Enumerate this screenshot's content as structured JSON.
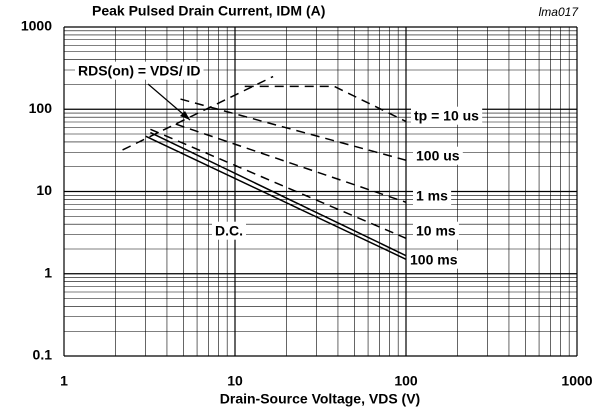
{
  "chart_data": {
    "type": "line",
    "title": "Peak Pulsed Drain Current, IDM (A)",
    "figure_id": "lma017",
    "x_label": "Drain-Source Voltage, VDS (V)",
    "log_x": true,
    "log_y": true,
    "grid": true,
    "xlim": [
      1,
      1000
    ],
    "xticks": [
      1,
      10,
      100,
      1000
    ],
    "ylim": [
      0.1,
      1000
    ],
    "yticks": [
      0.1,
      1,
      10,
      100,
      1000
    ],
    "color": "#000000",
    "series": [
      {
        "name": "RDS(on) = VDS/ ID",
        "dashed": true,
        "x": [
          2.2,
          16.7
        ],
        "values": [
          32,
          250
        ]
      },
      {
        "name": "tp = 10 us",
        "dashed": true,
        "x": [
          11.4,
          38,
          100
        ],
        "values": [
          190,
          190,
          71
        ]
      },
      {
        "name": "100 us",
        "dashed": true,
        "x": [
          4.8,
          100
        ],
        "values": [
          133,
          24
        ]
      },
      {
        "name": "1 ms",
        "dashed": true,
        "x": [
          4.5,
          100
        ],
        "values": [
          66,
          7.4
        ]
      },
      {
        "name": "10 ms",
        "dashed": true,
        "x": [
          3.2,
          100
        ],
        "values": [
          57,
          2.7
        ]
      },
      {
        "name": "100 ms",
        "dashed": false,
        "x": [
          3.2,
          100
        ],
        "values": [
          52,
          1.66
        ]
      },
      {
        "name": "D.C.",
        "dashed": false,
        "x": [
          3.0,
          100
        ],
        "values": [
          47,
          1.5
        ]
      }
    ]
  }
}
